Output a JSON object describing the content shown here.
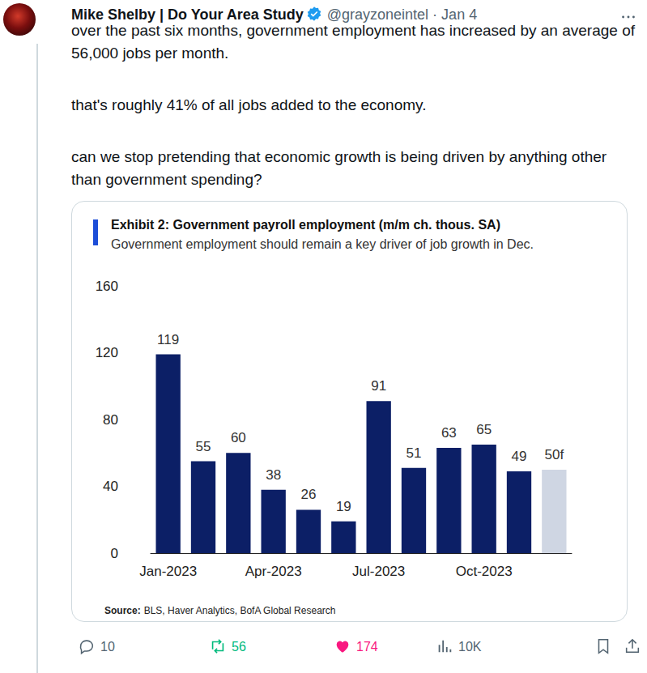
{
  "tweet": {
    "author": "Mike Shelby | Do Your Area Study",
    "handle": "@grayzoneintel",
    "separator": "·",
    "date": "Jan 4",
    "paragraphs": [
      "over the past six months, government employment has increased by an average of 56,000 jobs per month.",
      "that's roughly 41% of all jobs added to the economy.",
      "can we stop pretending that economic growth is being driven by anything other than government spending?"
    ],
    "replies": "10",
    "reposts": "56",
    "likes": "174",
    "views": "10K"
  },
  "chart_data": {
    "type": "bar",
    "title": "Exhibit 2: Government payroll employment (m/m ch. thous. SA)",
    "subtitle": "Government employment should remain a key driver of job growth in Dec.",
    "source_label": "Source:",
    "source": "BLS, Haver Analytics, BofA Global Research",
    "categories": [
      "Jan-2023",
      null,
      null,
      "Apr-2023",
      null,
      null,
      "Jul-2023",
      null,
      null,
      "Oct-2023",
      null,
      null
    ],
    "values": [
      119,
      55,
      60,
      38,
      26,
      19,
      91,
      51,
      63,
      65,
      49,
      50
    ],
    "value_labels": [
      "119",
      "55",
      "60",
      "38",
      "26",
      "19",
      "91",
      "51",
      "63",
      "65",
      "49",
      "50f"
    ],
    "colors": [
      "#0c1f66",
      "#0c1f66",
      "#0c1f66",
      "#0c1f66",
      "#0c1f66",
      "#0c1f66",
      "#0c1f66",
      "#0c1f66",
      "#0c1f66",
      "#0c1f66",
      "#0c1f66",
      "#cfd6e3"
    ],
    "ylim": [
      0,
      160
    ],
    "yticks": [
      0,
      40,
      80,
      120,
      160
    ],
    "grid": false,
    "data_labels": true
  }
}
